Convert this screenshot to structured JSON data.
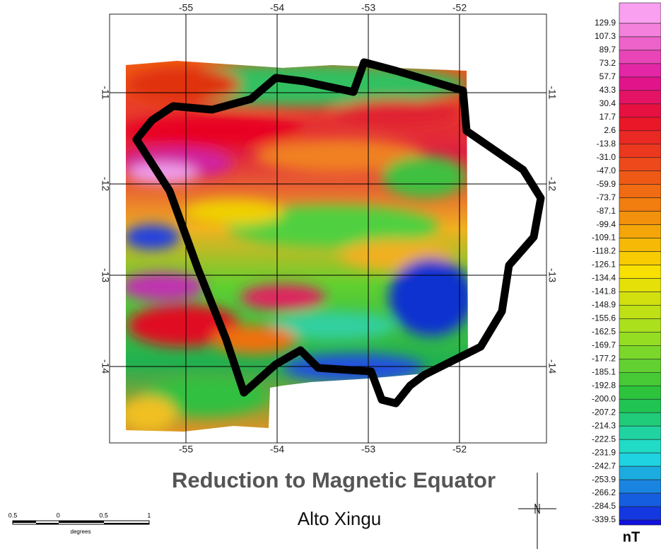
{
  "map": {
    "top_labels": [
      "-55",
      "-54",
      "-53",
      "-52"
    ],
    "bottom_labels": [
      "-55",
      "-54",
      "-53",
      "-52"
    ],
    "left_labels": [
      "-11",
      "-12",
      "-13",
      "-14"
    ],
    "right_labels": [
      "-11",
      "-12",
      "-13",
      "-14"
    ],
    "title": "Reduction to Magnetic Equator",
    "subtitle": "Alto Xingu"
  },
  "legend": {
    "labels": [
      "129.9",
      "107.3",
      "89.7",
      "73.2",
      "57.7",
      "43.3",
      "30.4",
      "17.7",
      "2.6",
      "-13.8",
      "-31.0",
      "-47.0",
      "-59.9",
      "-73.7",
      "-87.1",
      "-99.4",
      "-109.1",
      "-118.2",
      "-126.1",
      "-134.4",
      "-141.8",
      "-148.9",
      "-155.6",
      "-162.5",
      "-169.7",
      "-177.2",
      "-185.1",
      "-192.8",
      "-200.0",
      "-207.2",
      "-214.3",
      "-222.5",
      "-231.9",
      "-242.7",
      "-253.9",
      "-266.2",
      "-284.5",
      "-339.5"
    ],
    "unit": "nT"
  },
  "scale_bar": {
    "labels": [
      "0.5",
      "0",
      "0.5",
      "1"
    ],
    "unit": "degrees"
  }
}
